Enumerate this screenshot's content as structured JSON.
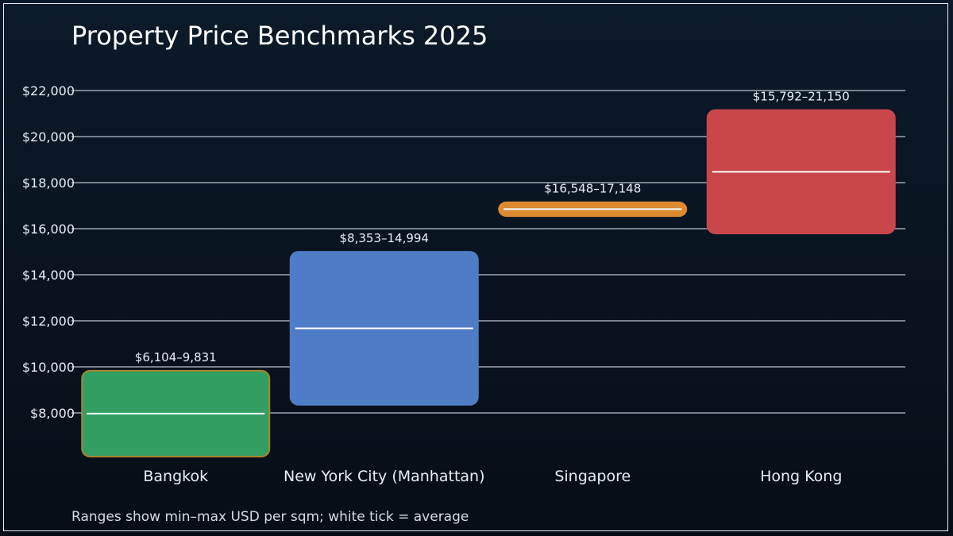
{
  "chart_data": {
    "type": "range-bar",
    "title": "Property Price Benchmarks 2025",
    "note": "Ranges show min–max USD per sqm; white tick = average",
    "categories": [
      "Bangkok",
      "New York City (Manhattan)",
      "Singapore",
      "Hong Kong"
    ],
    "series": [
      {
        "min": [
          6104,
          8353,
          16548,
          15792
        ],
        "max": [
          9831,
          14994,
          17148,
          21150
        ],
        "avg": [
          7968,
          11674,
          16848,
          18471
        ]
      }
    ],
    "range_labels": [
      "$6,104–9,831",
      "$8,353–14,994",
      "$16,548–17,148",
      "$15,792–21,150"
    ],
    "colors": [
      "#339e62",
      "#4f7cc6",
      "#dd8a30",
      "#c9464a"
    ],
    "border_colors": [
      "#a8852f",
      "#4f7cc6",
      "#dd8a30",
      "#c9464a"
    ],
    "yticks": [
      8000,
      10000,
      12000,
      14000,
      16000,
      18000,
      20000,
      22000
    ],
    "ytick_labels": [
      "$8,000",
      "$10,000",
      "$12,000",
      "$14,000",
      "$16,000",
      "$18,000",
      "$20,000",
      "$22,000"
    ],
    "grid": true
  }
}
